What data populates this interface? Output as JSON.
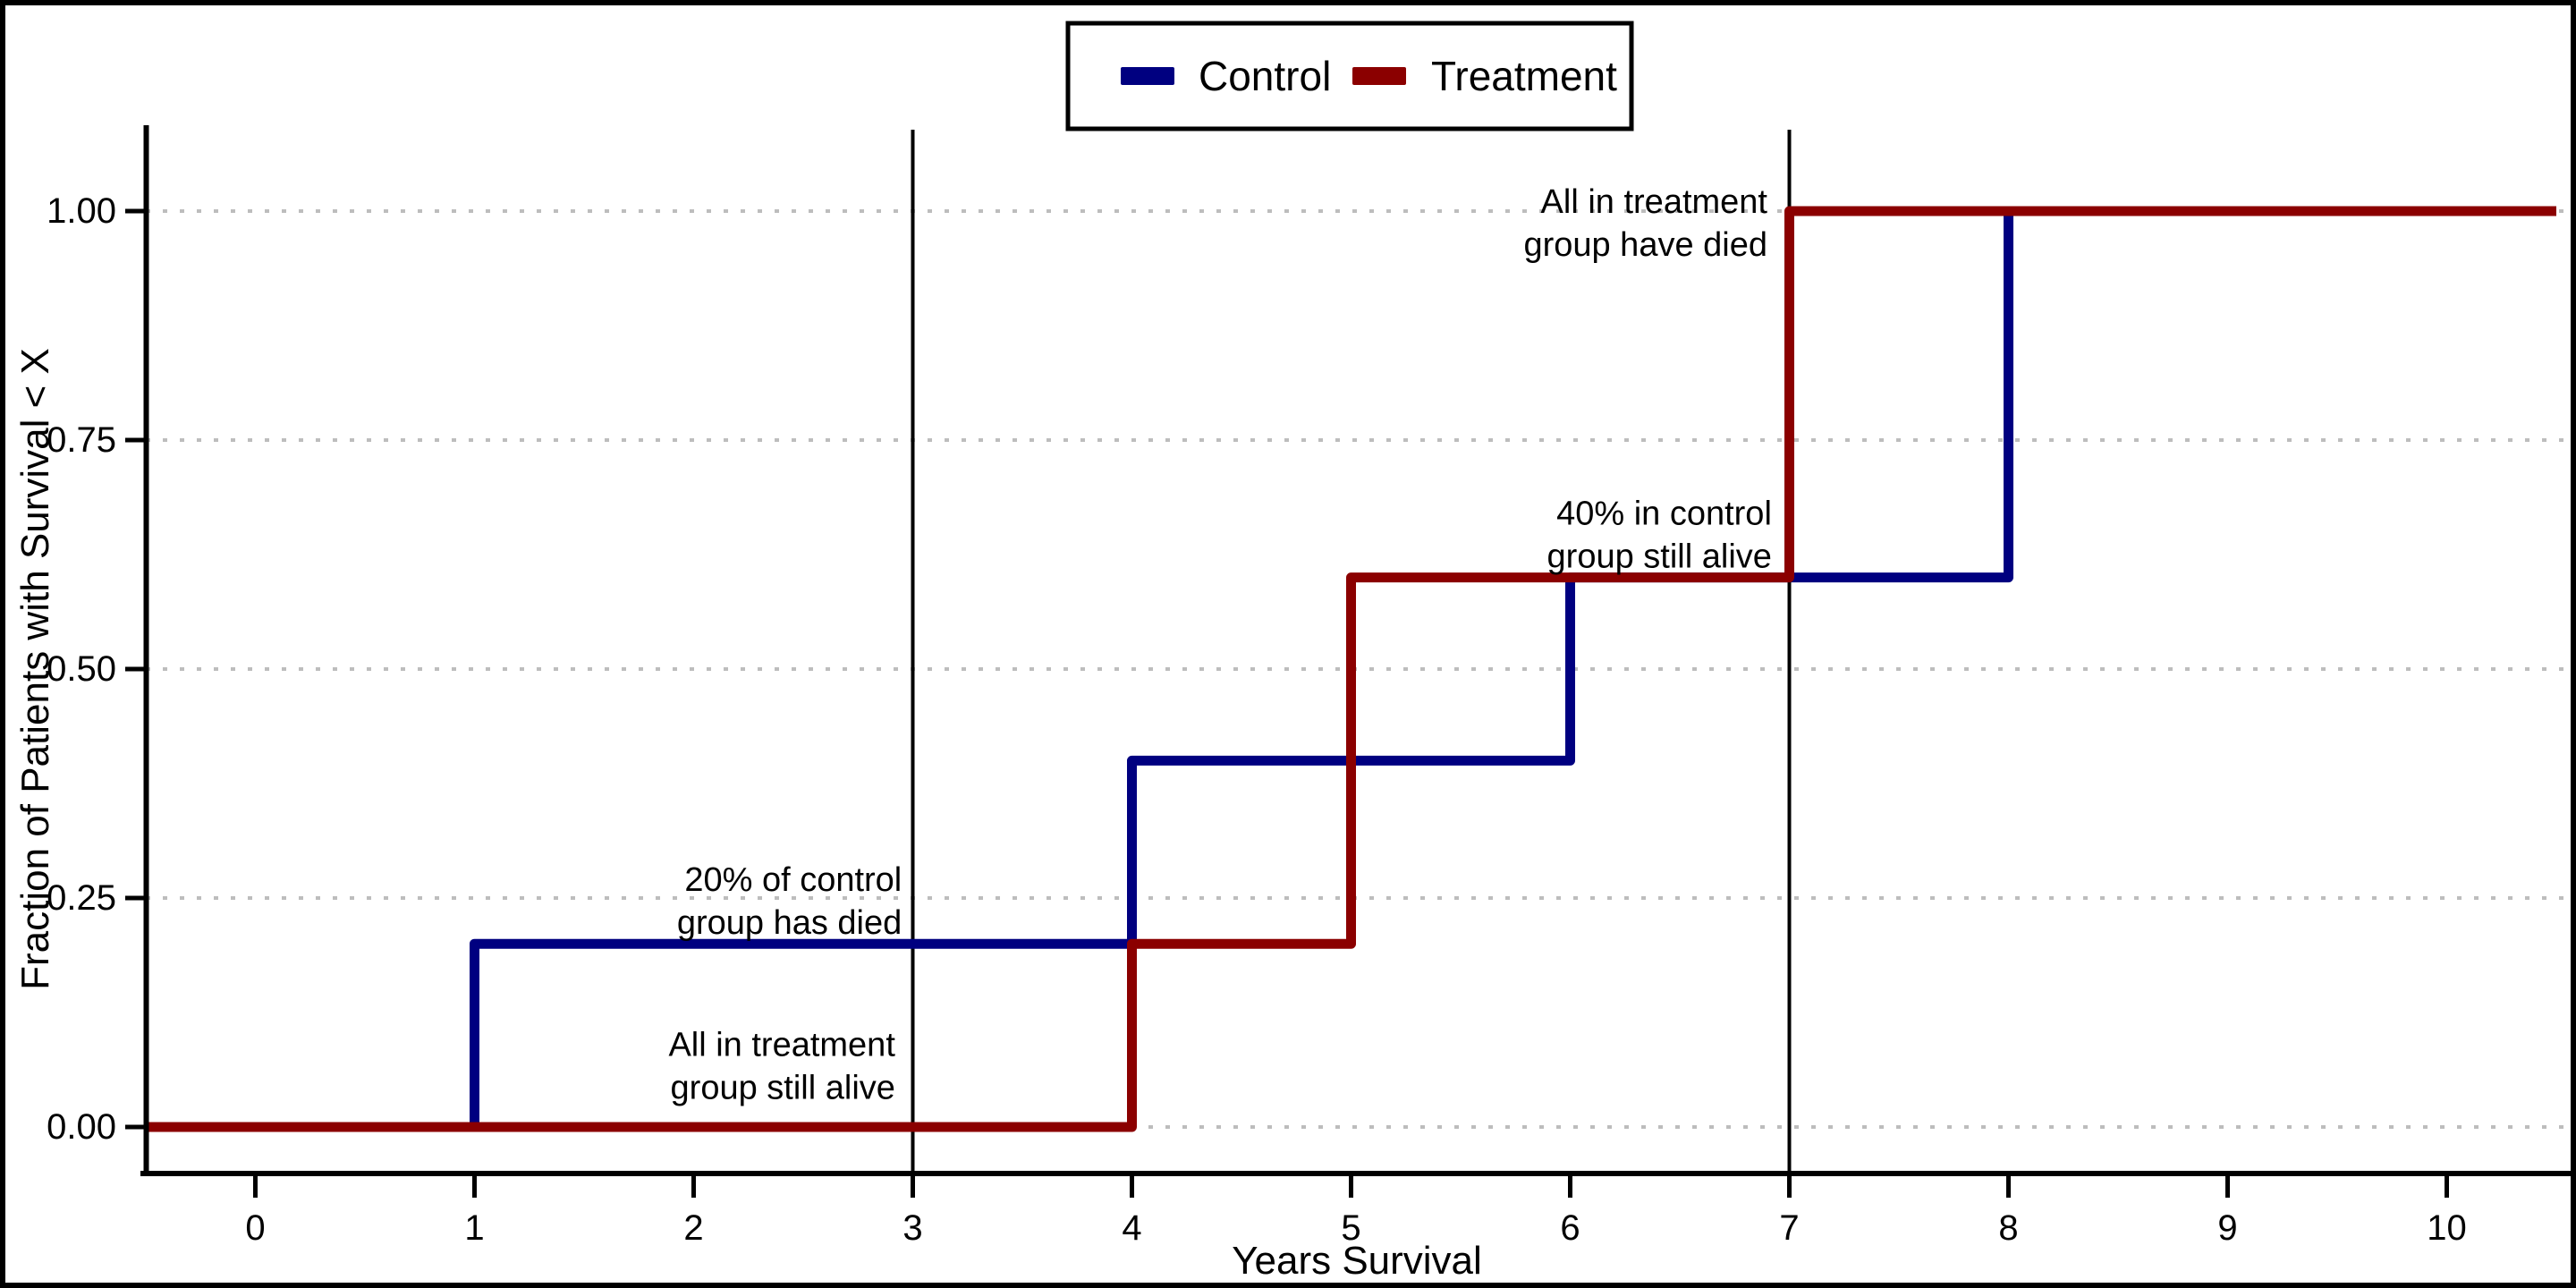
{
  "figure": {
    "background_color": "#ffffff",
    "border_color": "#000000"
  },
  "chart_data": {
    "type": "line",
    "subtype": "step",
    "title": "",
    "xlabel": "Years Survival",
    "ylabel": "Fraction of Patients with Survival < X",
    "xlim": [
      -0.5,
      10.56
    ],
    "ylim": [
      -0.05,
      1.05
    ],
    "x_ticks": [
      0,
      1,
      2,
      3,
      4,
      5,
      6,
      7,
      8,
      9,
      10
    ],
    "y_ticks": [
      0,
      0.25,
      0.5,
      0.75,
      1
    ],
    "y_tick_labels": [
      "0.00",
      "0.25",
      "0.50",
      "0.75",
      "1.00"
    ],
    "grid": "horizontal dotted at each y tick",
    "grid_color": "#bdbdbd",
    "legend_position": "top-center",
    "series": [
      {
        "name": "Control",
        "color": "#000080",
        "points": [
          [
            -0.5,
            0
          ],
          [
            1,
            0
          ],
          [
            1,
            0.2
          ],
          [
            4,
            0.2
          ],
          [
            4,
            0.4
          ],
          [
            6,
            0.4
          ],
          [
            6,
            0.6
          ],
          [
            8,
            0.6
          ],
          [
            8,
            1
          ],
          [
            10.5,
            1
          ]
        ]
      },
      {
        "name": "Treatment",
        "color": "#8B0000",
        "points": [
          [
            -0.5,
            0
          ],
          [
            4,
            0
          ],
          [
            4,
            0.2
          ],
          [
            5,
            0.2
          ],
          [
            5,
            0.6
          ],
          [
            7,
            0.6
          ],
          [
            7,
            1
          ],
          [
            10.5,
            1
          ]
        ]
      }
    ],
    "reference_lines_x": [
      3,
      7
    ],
    "reference_line_color": "#000000",
    "annotations": [
      {
        "lines": [
          "20% of control",
          "group has died"
        ],
        "x": 2.95,
        "y": 0.25,
        "align": "right"
      },
      {
        "lines": [
          "All in treatment",
          "group still alive"
        ],
        "x": 2.92,
        "y": 0.07,
        "align": "right"
      },
      {
        "lines": [
          "All in treatment",
          "group have died"
        ],
        "x": 6.9,
        "y": 0.99,
        "align": "right"
      },
      {
        "lines": [
          "40% in control",
          "group still alive"
        ],
        "x": 6.92,
        "y": 0.65,
        "align": "right"
      }
    ]
  }
}
